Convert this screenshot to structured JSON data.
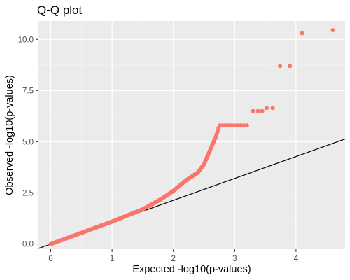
{
  "chart_data": {
    "type": "scatter",
    "title": "Q-Q plot",
    "xlabel": "Expected -log10(p-values)",
    "ylabel": "Observed -log10(p-values)",
    "xlim": [
      -0.2,
      4.8
    ],
    "ylim": [
      -0.25,
      10.9
    ],
    "x_ticks": [
      0,
      1,
      2,
      3,
      4
    ],
    "x_tick_labels": [
      "0",
      "1",
      "2",
      "3",
      "4"
    ],
    "y_ticks": [
      0,
      2.5,
      5,
      7.5,
      10
    ],
    "y_tick_labels": [
      "0.0",
      "2.5",
      "5.0",
      "7.5",
      "10.0"
    ],
    "grid": true,
    "legend": "none",
    "colors": {
      "point": "#f8766d",
      "panel": "#ebebeb",
      "grid_major": "#ffffff",
      "grid_minor": "#f5f5f5",
      "reference_line": "#000000"
    },
    "reference_line": {
      "slope": 1.07,
      "intercept": 0
    },
    "curve_anchors": [
      [
        0,
        0
      ],
      [
        0.5,
        0.55
      ],
      [
        1,
        1.1
      ],
      [
        1.5,
        1.7
      ],
      [
        1.8,
        2.2
      ],
      [
        2.0,
        2.6
      ],
      [
        2.2,
        3.1
      ],
      [
        2.4,
        3.5
      ],
      [
        2.5,
        3.9
      ],
      [
        2.6,
        4.6
      ],
      [
        2.7,
        5.3
      ],
      [
        2.75,
        5.8
      ]
    ],
    "series": [
      {
        "x": [
          2.76,
          2.8,
          2.85,
          2.9,
          2.95,
          3.0,
          3.05,
          3.1,
          3.15,
          3.2,
          3.3,
          3.38,
          3.45,
          3.52,
          3.62,
          3.74,
          3.9,
          4.1,
          4.6
        ],
        "y": [
          5.8,
          5.8,
          5.8,
          5.8,
          5.8,
          5.8,
          5.8,
          5.8,
          5.8,
          5.8,
          6.5,
          6.5,
          6.5,
          6.65,
          6.65,
          8.7,
          8.7,
          10.3,
          10.45
        ]
      }
    ]
  }
}
